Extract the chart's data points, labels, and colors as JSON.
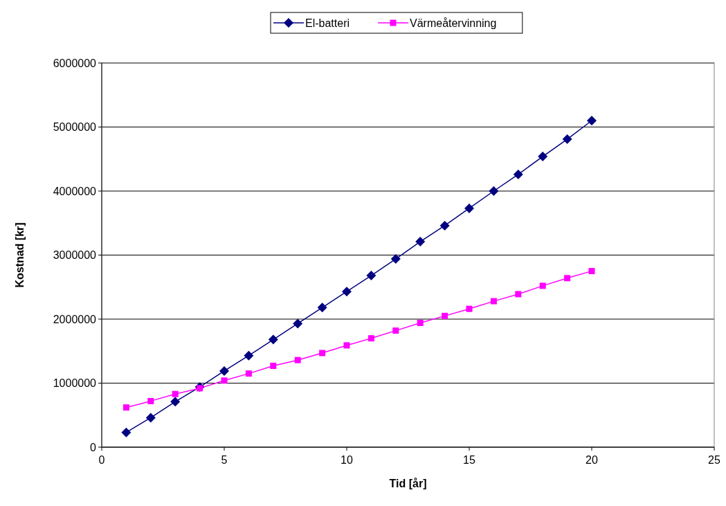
{
  "chart_data": {
    "type": "line",
    "xlabel": "Tid [år]",
    "ylabel": "Kostnad [kr]",
    "x": [
      1,
      2,
      3,
      4,
      5,
      6,
      7,
      8,
      9,
      10,
      11,
      12,
      13,
      14,
      15,
      16,
      17,
      18,
      19,
      20
    ],
    "series": [
      {
        "name": "El-batteri",
        "color": "#000080",
        "marker": "diamond",
        "values": [
          230000,
          460000,
          710000,
          940000,
          1190000,
          1430000,
          1680000,
          1930000,
          2180000,
          2430000,
          2680000,
          2940000,
          3210000,
          3460000,
          3730000,
          4000000,
          4260000,
          4540000,
          4810000,
          5100000
        ]
      },
      {
        "name": "Värmeåtervinning",
        "color": "#ff00ff",
        "marker": "square",
        "values": [
          620000,
          720000,
          830000,
          920000,
          1040000,
          1150000,
          1270000,
          1360000,
          1470000,
          1590000,
          1700000,
          1820000,
          1940000,
          2050000,
          2160000,
          2280000,
          2390000,
          2520000,
          2640000,
          2750000
        ]
      }
    ],
    "xlim": [
      0,
      25
    ],
    "xticks": [
      0,
      5,
      10,
      15,
      20,
      25
    ],
    "ylim": [
      0,
      6000000
    ],
    "yticks": [
      0,
      1000000,
      2000000,
      3000000,
      4000000,
      5000000,
      6000000
    ],
    "grid": "y",
    "legend": "top",
    "line_style": "solid"
  }
}
